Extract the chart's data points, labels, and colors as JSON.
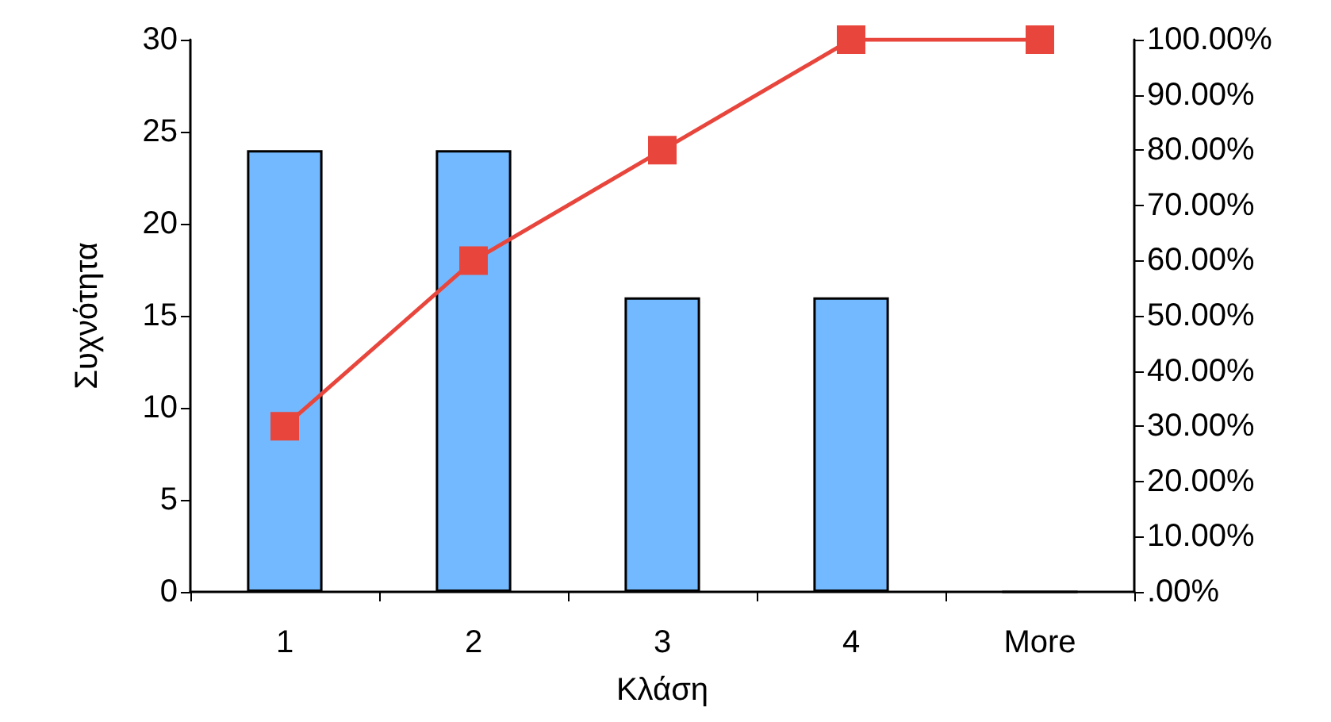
{
  "chart_data": {
    "type": "bar",
    "xlabel": "Κλάση",
    "ylabel": "Συχνότητα",
    "categories": [
      "1",
      "2",
      "3",
      "4",
      "More"
    ],
    "series": [
      {
        "color": "#73b9ff",
        "values": [
          24,
          24,
          16,
          16,
          0
        ]
      },
      {
        "type": "line",
        "axis": "y2",
        "color": "#e8463c",
        "values": [
          30,
          60,
          80,
          100,
          100
        ]
      }
    ],
    "ylim": [
      0,
      30
    ],
    "yticks": [
      0,
      5,
      10,
      15,
      20,
      25,
      30
    ],
    "y2lim": [
      0,
      100
    ],
    "y2ticks": [
      {
        "value": 0,
        "label": ".00%"
      },
      {
        "value": 10,
        "label": "10.00%"
      },
      {
        "value": 20,
        "label": "20.00%"
      },
      {
        "value": 30,
        "label": "30.00%"
      },
      {
        "value": 40,
        "label": "40.00%"
      },
      {
        "value": 50,
        "label": "50.00%"
      },
      {
        "value": 60,
        "label": "60.00%"
      },
      {
        "value": 70,
        "label": "70.00%"
      },
      {
        "value": 80,
        "label": "80.00%"
      },
      {
        "value": 90,
        "label": "90.00%"
      },
      {
        "value": 100,
        "label": "100.00%"
      }
    ],
    "marker": "square",
    "line_style": "solid",
    "grid": false
  }
}
